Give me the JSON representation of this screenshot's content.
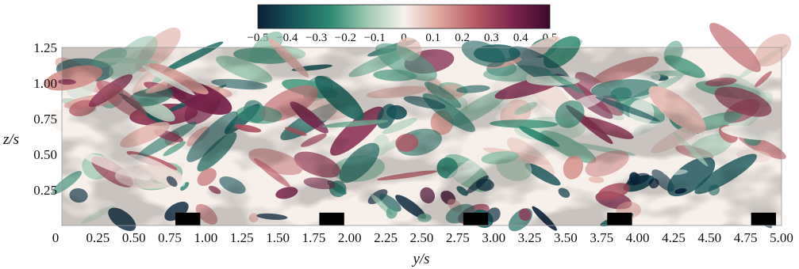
{
  "chart_data": {
    "type": "heatmap",
    "xlabel": "y/s",
    "ylabel": "z/s",
    "xlim": [
      0,
      5.0
    ],
    "ylim": [
      0,
      1.25
    ],
    "x_ticks": [
      "0",
      "0.25",
      "0.50",
      "0.75",
      "1.00",
      "1.25",
      "1.50",
      "1.75",
      "2.00",
      "2.25",
      "2.50",
      "2.75",
      "3.00",
      "3.25",
      "3.50",
      "3.75",
      "4.00",
      "4.25",
      "4.50",
      "4.75",
      "5.00"
    ],
    "x_tick_values": [
      0,
      0.25,
      0.5,
      0.75,
      1.0,
      1.25,
      1.5,
      1.75,
      2.0,
      2.25,
      2.5,
      2.75,
      3.0,
      3.25,
      3.5,
      3.75,
      4.0,
      4.25,
      4.5,
      4.75,
      5.0
    ],
    "y_ticks": [
      "1.25",
      "1.00",
      "0.75",
      "0.50",
      "0.25"
    ],
    "y_tick_values": [
      1.25,
      1.0,
      0.75,
      0.5,
      0.25
    ],
    "colorbar": {
      "min": -0.5,
      "max": 0.5,
      "tick_labels": [
        "−0.5",
        "−0.4",
        "−0.3",
        "−0.2",
        "−0.1",
        "0",
        "0.1",
        "0.2",
        "0.3",
        "0.4",
        "0.5"
      ],
      "tick_values": [
        -0.5,
        -0.4,
        -0.3,
        -0.2,
        -0.1,
        0,
        0.1,
        0.2,
        0.3,
        0.4,
        0.5
      ],
      "colormap": [
        "#0b1f3a",
        "#17575a",
        "#2f8a72",
        "#9fc9b2",
        "#f7f2ee",
        "#dea39a",
        "#b55764",
        "#7d244d",
        "#3b0a2c"
      ]
    },
    "roughness_elements": [
      {
        "y_start": 0.75,
        "y_end": 1.0,
        "z_top": 0.09
      },
      {
        "y_start": 1.75,
        "y_end": 2.0,
        "z_top": 0.09
      },
      {
        "y_start": 2.75,
        "y_end": 3.0,
        "z_top": 0.09
      },
      {
        "y_start": 3.75,
        "y_end": 4.0,
        "z_top": 0.09
      },
      {
        "y_start": 4.75,
        "y_end": 5.0,
        "z_top": 0.09
      }
    ]
  }
}
